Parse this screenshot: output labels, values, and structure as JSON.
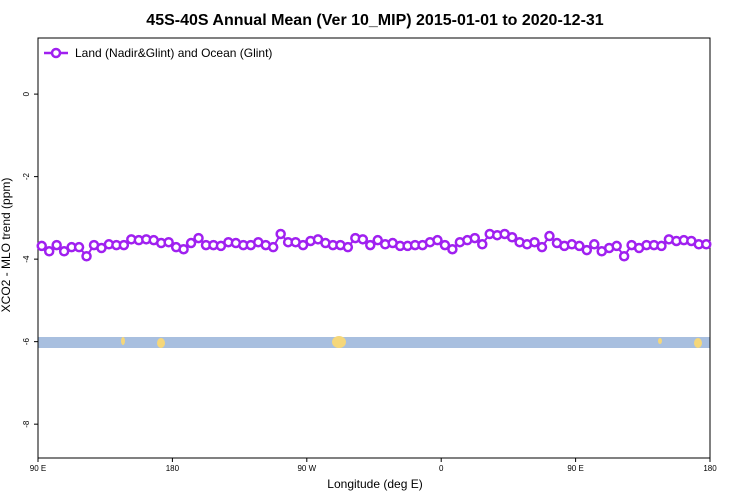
{
  "chart_data": {
    "type": "line",
    "title": "45S-40S Annual Mean (Ver 10_MIP)   2015-01-01 to 2020-12-31",
    "x_label": "Longitude (deg E)",
    "y_label": "XCO2 - MLO trend (ppm)",
    "xlim": [
      90,
      540
    ],
    "ylim": [
      -8.82,
      1.36
    ],
    "xticks": [
      {
        "value": 90,
        "label": "90 E"
      },
      180,
      {
        "value": 270,
        "label": "90 W"
      },
      {
        "value": 360,
        "label": "0"
      },
      {
        "value": 450,
        "label": "90 E"
      },
      {
        "value": 540,
        "label": "180"
      }
    ],
    "yticks": [
      0,
      -2,
      -4,
      -6,
      -8
    ],
    "legend": "top-left",
    "x": [
      92.5,
      97.5,
      102.5,
      107.5,
      112.5,
      117.5,
      122.5,
      127.5,
      132.5,
      137.5,
      142.5,
      147.5,
      152.5,
      157.5,
      162.5,
      167.5,
      172.5,
      177.5,
      182.5,
      187.5,
      192.5,
      197.5,
      202.5,
      207.5,
      212.5,
      217.5,
      222.5,
      227.5,
      232.5,
      237.5,
      242.5,
      247.5,
      252.5,
      257.5,
      262.5,
      267.5,
      272.5,
      277.5,
      282.5,
      287.5,
      292.5,
      297.5,
      302.5,
      307.5,
      312.5,
      317.5,
      322.5,
      327.5,
      332.5,
      337.5,
      342.5,
      347.5,
      352.5,
      357.5,
      362.5,
      367.5,
      372.5,
      377.5,
      382.5,
      387.5,
      392.5,
      397.5,
      402.5,
      407.5,
      412.5,
      417.5,
      422.5,
      427.5,
      432.5,
      437.5,
      442.5,
      447.5,
      452.5,
      457.5,
      462.5,
      467.5,
      472.5,
      477.5,
      482.5,
      487.5,
      492.5,
      497.5,
      502.5,
      507.5,
      512.5,
      517.5,
      522.5,
      527.5,
      532.5,
      537.5
    ],
    "series": [
      {
        "name": "Land (Nadir&Glint) and Ocean (Glint)",
        "color": "#a020f0",
        "values": [
          -3.68,
          -3.81,
          -3.66,
          -3.81,
          -3.71,
          -3.71,
          -3.93,
          -3.66,
          -3.73,
          -3.64,
          -3.66,
          -3.66,
          -3.52,
          -3.54,
          -3.52,
          -3.54,
          -3.61,
          -3.59,
          -3.71,
          -3.76,
          -3.61,
          -3.49,
          -3.66,
          -3.66,
          -3.68,
          -3.59,
          -3.61,
          -3.66,
          -3.66,
          -3.59,
          -3.66,
          -3.71,
          -3.39,
          -3.59,
          -3.59,
          -3.66,
          -3.56,
          -3.52,
          -3.61,
          -3.66,
          -3.66,
          -3.71,
          -3.49,
          -3.52,
          -3.66,
          -3.54,
          -3.64,
          -3.61,
          -3.68,
          -3.68,
          -3.66,
          -3.66,
          -3.59,
          -3.54,
          -3.66,
          -3.76,
          -3.59,
          -3.54,
          -3.49,
          -3.64,
          -3.39,
          -3.42,
          -3.39,
          -3.47,
          -3.59,
          -3.64,
          -3.59,
          -3.71,
          -3.44,
          -3.61,
          -3.68,
          -3.64,
          -3.68,
          -3.78,
          -3.64,
          -3.81,
          -3.73,
          -3.68,
          -3.93,
          -3.66,
          -3.73,
          -3.66,
          -3.66,
          -3.68,
          -3.52,
          -3.56,
          -3.54,
          -3.56,
          -3.64,
          -3.64
        ]
      }
    ]
  }
}
